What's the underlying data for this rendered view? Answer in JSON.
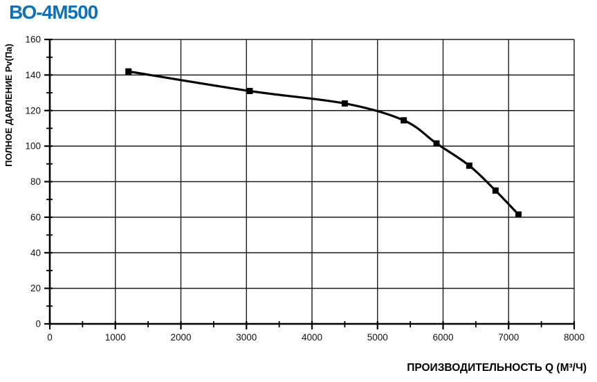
{
  "page": {
    "title": "ВО-4М500"
  },
  "chart_data": {
    "type": "line",
    "title": "ВО-4М500",
    "title_color": "#0e71b8",
    "xlabel": "ПРОИЗВОДИТЕЛЬНОСТЬ  Q  (М³/Ч)",
    "ylabel": "ПОЛНОЕ ДАВЛЕНИЕ  Pv(Па)",
    "x": [
      1200,
      3050,
      4500,
      5400,
      5900,
      6400,
      6800,
      7150
    ],
    "y": [
      142,
      131,
      124,
      114.5,
      101.5,
      89,
      75,
      61.5
    ],
    "xlim": [
      0,
      8000
    ],
    "ylim": [
      0,
      160
    ],
    "x_major_step": 1000,
    "x_minor_step": 500,
    "y_major_step": 20,
    "y_minor_step": 10,
    "x_ticks": [
      "0",
      "1000",
      "2000",
      "3000",
      "4000",
      "5000",
      "6000",
      "7000",
      "8000"
    ],
    "y_ticks": [
      "0",
      "20",
      "40",
      "60",
      "80",
      "100",
      "120",
      "140",
      "160"
    ],
    "grid": true,
    "legend": false,
    "marker": "square",
    "line_color": "#000000",
    "marker_color": "#000000",
    "grid_color": "#1a1a1a",
    "axis_color": "#000000"
  }
}
